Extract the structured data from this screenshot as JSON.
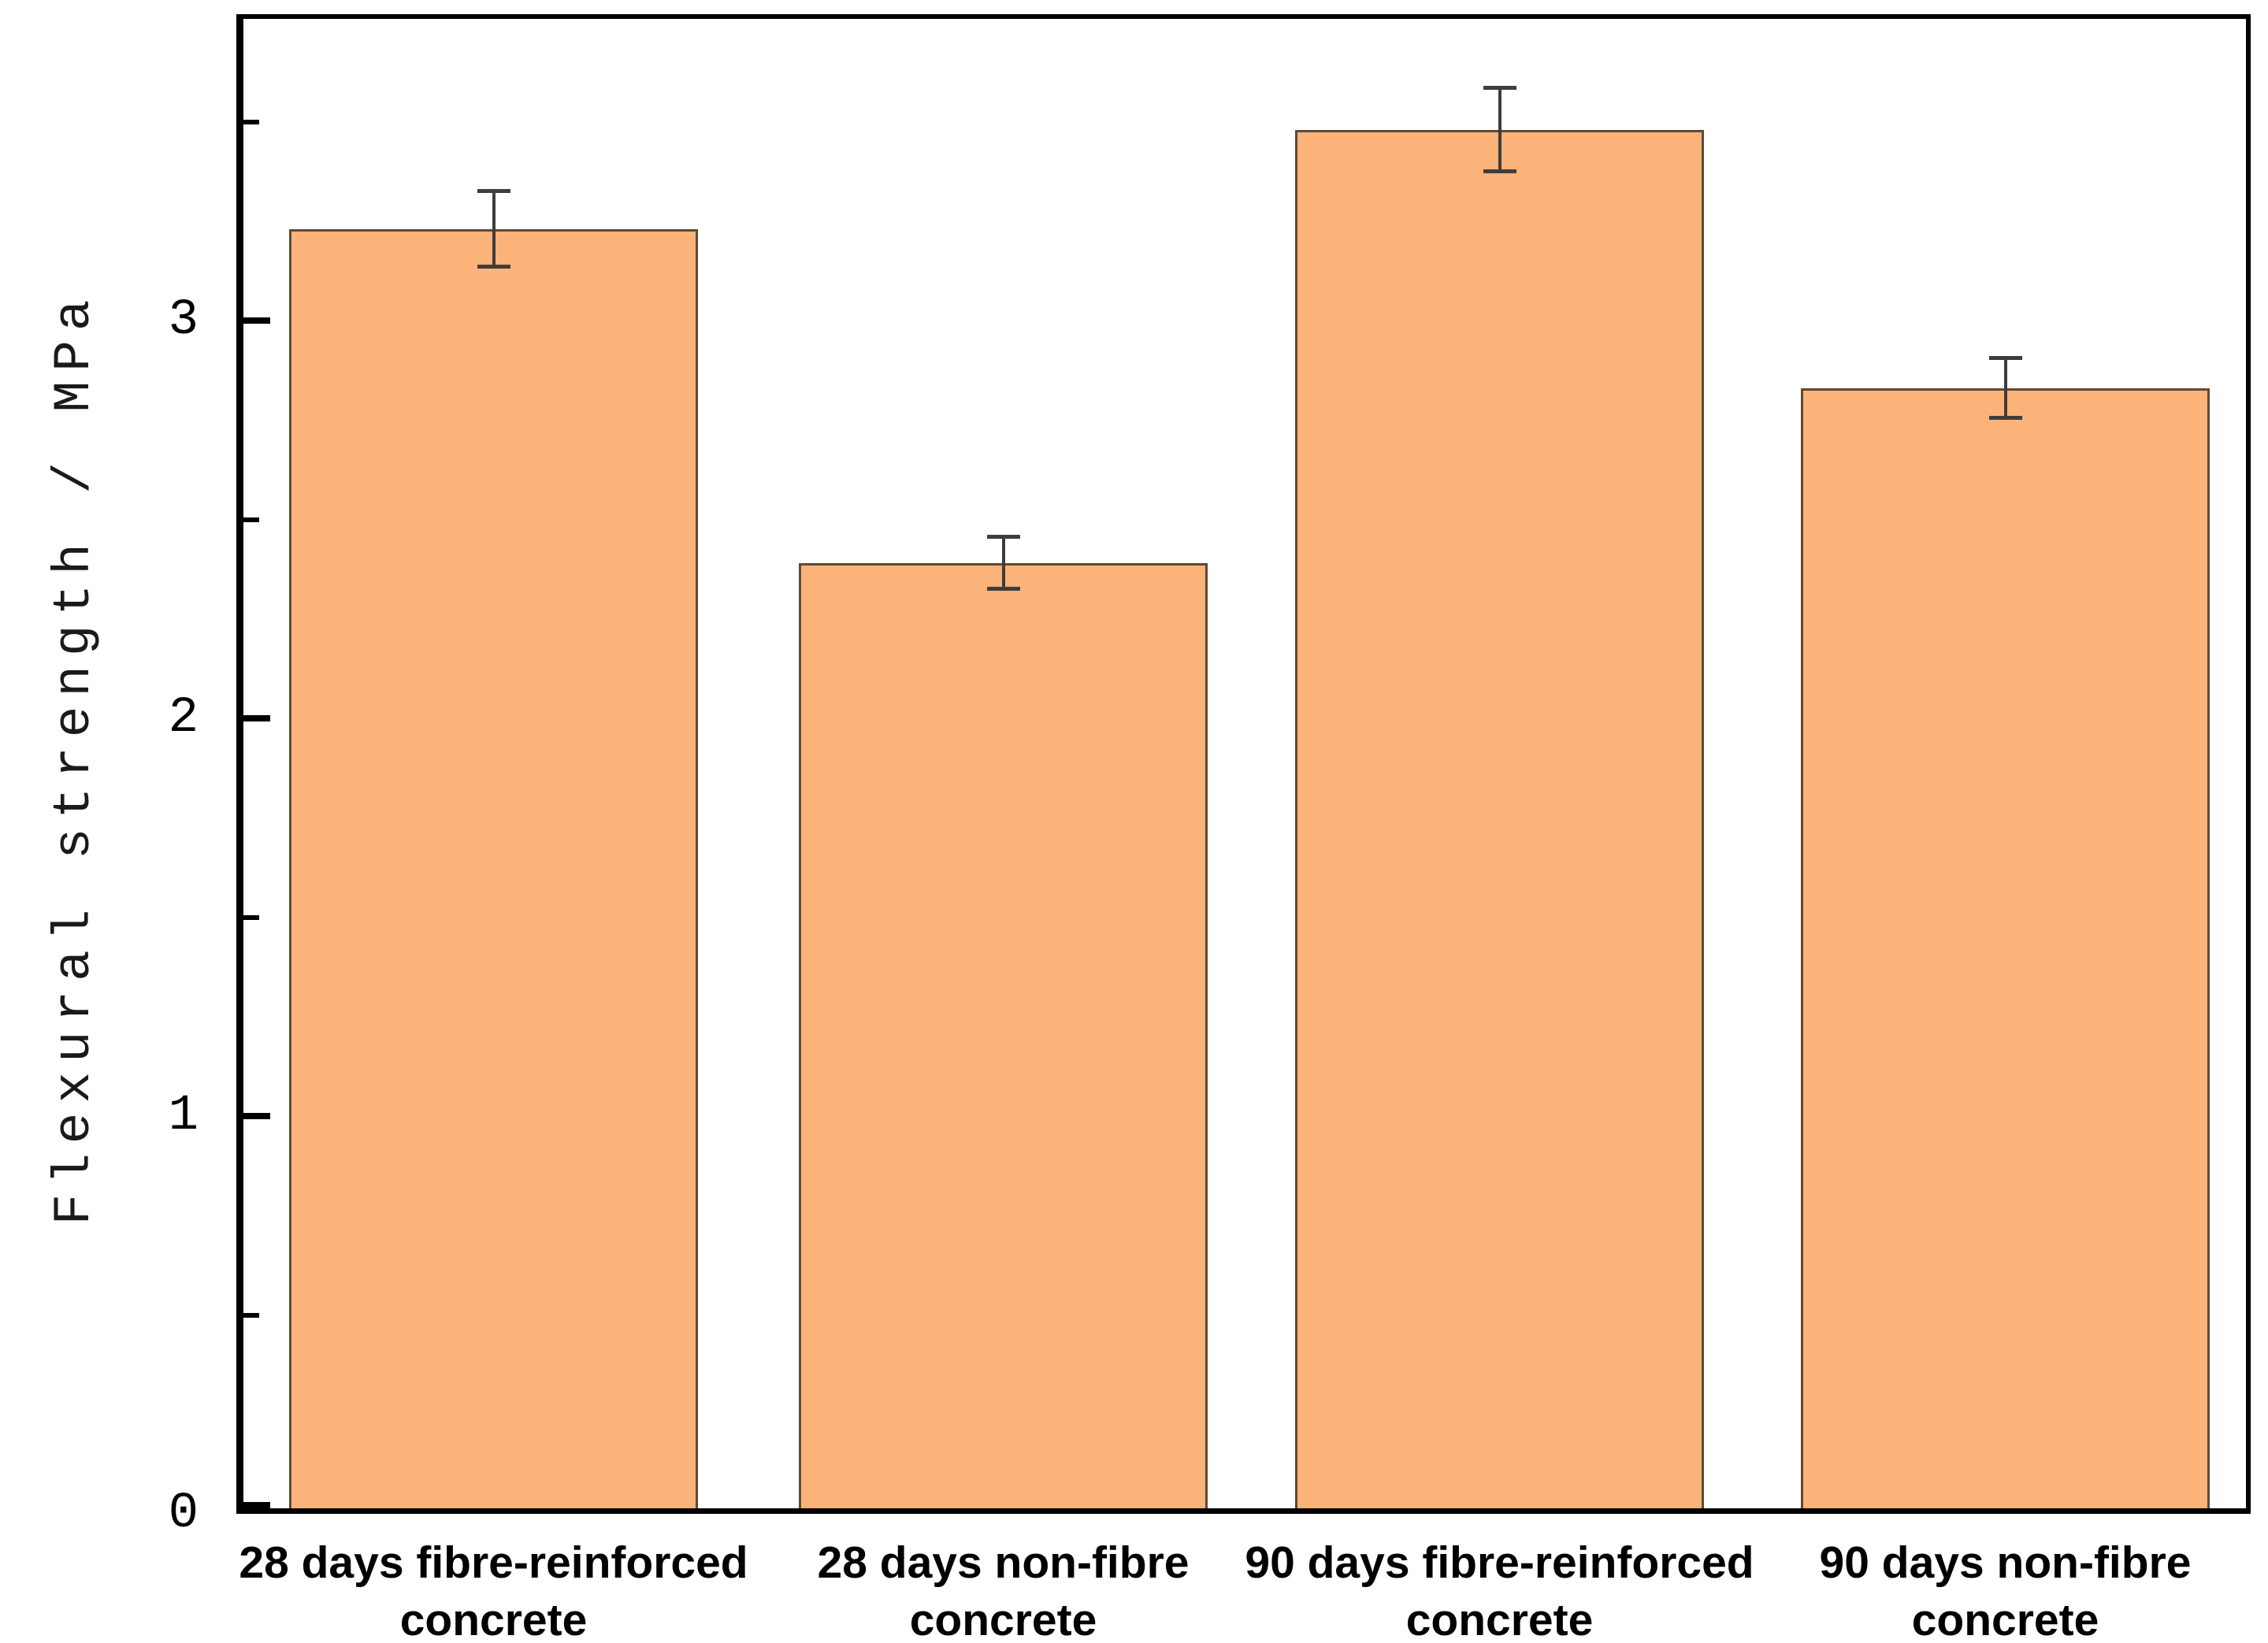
{
  "figure": {
    "background": "#ffffff"
  },
  "chart_data": {
    "type": "bar",
    "title": "",
    "xlabel": "",
    "ylabel": "Flexural strength / MPa",
    "categories": [
      "28 days fibre-reinforced\nconcrete",
      "28 days non-fibre\nconcrete",
      "90 days fibre-reinforced\nconcrete",
      "90 days non-fibre\nconcrete"
    ],
    "values": [
      3.23,
      2.39,
      3.48,
      2.83
    ],
    "errors": [
      0.1,
      0.07,
      0.11,
      0.08
    ],
    "ylim": [
      0,
      3.77
    ],
    "yticks_major": [
      0,
      1,
      2,
      3
    ],
    "ytick_labels": [
      "0",
      "1",
      "2",
      "3"
    ],
    "yticks_minor": [
      0.5,
      1.5,
      2.5,
      3.5
    ],
    "grid": false,
    "legend_position": "none",
    "bar_color": "#FCB379",
    "bar_border_color": "#5E4937",
    "error_bar_color": "#3D3D3D",
    "axis_color": "#000000",
    "text_color": "#000000"
  }
}
